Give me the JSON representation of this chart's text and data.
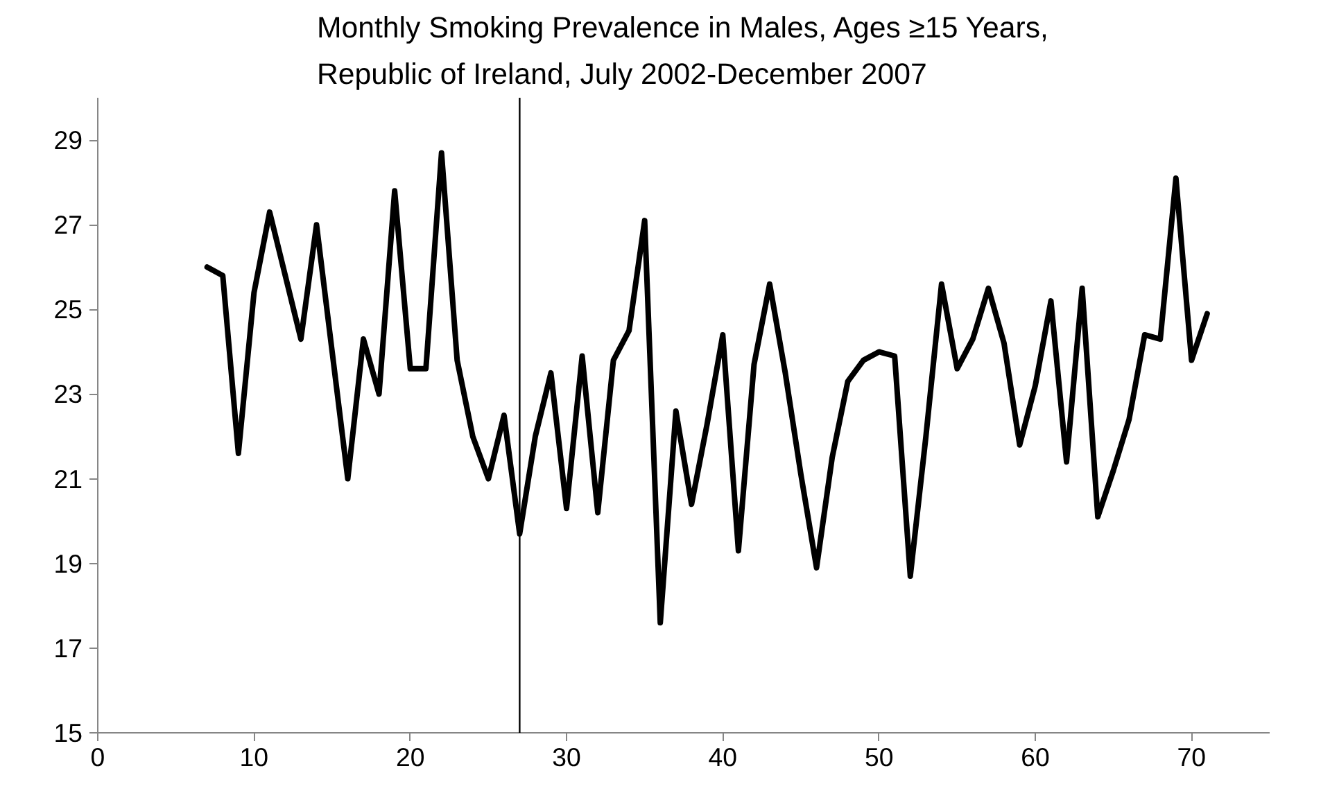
{
  "chart_data": {
    "type": "line",
    "title": "Monthly Smoking Prevalence in Males, Ages ≥15 Years,\nRepublic of Ireland, July 2002-December 2007",
    "x": [
      7,
      8,
      9,
      10,
      11,
      12,
      13,
      14,
      15,
      16,
      17,
      18,
      19,
      20,
      21,
      22,
      23,
      24,
      25,
      26,
      27,
      28,
      29,
      30,
      31,
      32,
      33,
      34,
      35,
      36,
      37,
      38,
      39,
      40,
      41,
      42,
      43,
      44,
      45,
      46,
      47,
      48,
      49,
      50,
      51,
      52,
      53,
      54,
      55,
      56,
      57,
      58,
      59,
      60,
      61,
      62,
      63,
      64,
      65,
      66,
      67,
      68,
      69,
      70,
      71
    ],
    "series": [
      {
        "color": "#000000",
        "values": [
          26.0,
          25.8,
          21.6,
          25.4,
          27.3,
          25.8,
          24.3,
          27.0,
          24.0,
          21.0,
          24.3,
          23.0,
          27.8,
          23.6,
          23.6,
          28.7,
          23.8,
          22.0,
          21.0,
          22.5,
          19.7,
          22.0,
          23.5,
          20.3,
          23.9,
          20.2,
          23.8,
          24.5,
          27.1,
          17.6,
          22.6,
          20.4,
          22.3,
          24.4,
          19.3,
          23.7,
          25.6,
          23.5,
          21.1,
          18.9,
          21.5,
          23.3,
          23.8,
          24.0,
          23.9,
          18.7,
          22.0,
          25.6,
          23.6,
          24.3,
          25.5,
          24.2,
          21.8,
          23.2,
          25.2,
          21.4,
          25.5,
          20.1,
          21.2,
          22.4,
          24.4,
          24.3,
          28.1,
          23.8,
          24.9
        ]
      }
    ],
    "xlim": [
      0,
      75
    ],
    "ylim": [
      15,
      30
    ],
    "xticks": [
      0,
      10,
      20,
      30,
      40,
      50,
      60,
      70
    ],
    "yticks": [
      15,
      17,
      19,
      21,
      23,
      25,
      27,
      29
    ],
    "ref_lines": [
      {
        "axis": "x",
        "value": 27,
        "color": "#000000"
      }
    ],
    "grid": false,
    "marker": "none",
    "line_style": "solid"
  }
}
